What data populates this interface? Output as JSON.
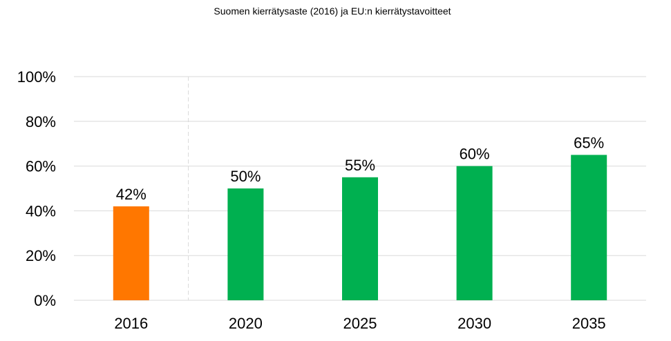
{
  "chart_data": {
    "type": "bar",
    "title": "Suomen kierrätysaste (2016) ja EU:n kierrätystavoitteet",
    "categories": [
      "2016",
      "2020",
      "2025",
      "2030",
      "2035"
    ],
    "values": [
      42,
      50,
      55,
      60,
      65
    ],
    "value_labels": [
      "42%",
      "50%",
      "55%",
      "60%",
      "65%"
    ],
    "bar_colors": [
      "#FF7700",
      "#00B050",
      "#00B050",
      "#00B050",
      "#00B050"
    ],
    "ylim": [
      0,
      100
    ],
    "yticks": [
      0,
      20,
      40,
      60,
      80,
      100
    ],
    "ytick_labels": [
      "0%",
      "20%",
      "40%",
      "60%",
      "80%",
      "100%"
    ],
    "xlabel": "",
    "ylabel": "",
    "grid": true,
    "separator_after_category": "2016"
  }
}
